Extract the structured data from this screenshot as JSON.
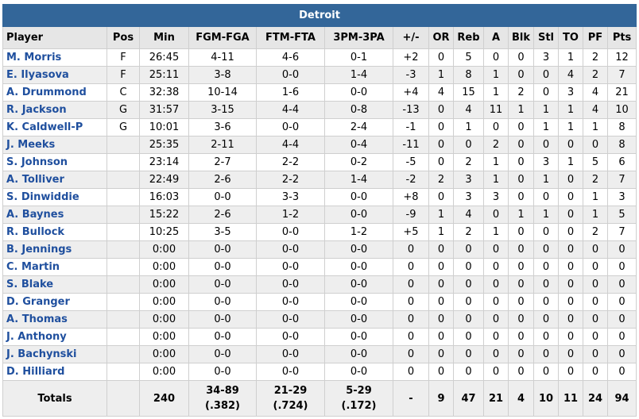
{
  "team": "Detroit",
  "columns": [
    "Player",
    "Pos",
    "Min",
    "FGM-FGA",
    "FTM-FTA",
    "3PM-3PA",
    "+/-",
    "OR",
    "Reb",
    "A",
    "Blk",
    "Stl",
    "TO",
    "PF",
    "Pts"
  ],
  "players": [
    [
      "M. Morris",
      "F",
      "26:45",
      "4-11",
      "4-6",
      "0-1",
      "+2",
      "0",
      "5",
      "0",
      "0",
      "3",
      "1",
      "2",
      "12"
    ],
    [
      "E. Ilyasova",
      "F",
      "25:11",
      "3-8",
      "0-0",
      "1-4",
      "-3",
      "1",
      "8",
      "1",
      "0",
      "0",
      "4",
      "2",
      "7"
    ],
    [
      "A. Drummond",
      "C",
      "32:38",
      "10-14",
      "1-6",
      "0-0",
      "+4",
      "4",
      "15",
      "1",
      "2",
      "0",
      "3",
      "4",
      "21"
    ],
    [
      "R. Jackson",
      "G",
      "31:57",
      "3-15",
      "4-4",
      "0-8",
      "-13",
      "0",
      "4",
      "11",
      "1",
      "1",
      "1",
      "4",
      "10"
    ],
    [
      "K. Caldwell-P",
      "G",
      "10:01",
      "3-6",
      "0-0",
      "2-4",
      "-1",
      "0",
      "1",
      "0",
      "0",
      "1",
      "1",
      "1",
      "8"
    ],
    [
      "J. Meeks",
      "",
      "25:35",
      "2-11",
      "4-4",
      "0-4",
      "-11",
      "0",
      "0",
      "2",
      "0",
      "0",
      "0",
      "0",
      "8"
    ],
    [
      "S. Johnson",
      "",
      "23:14",
      "2-7",
      "2-2",
      "0-2",
      "-5",
      "0",
      "2",
      "1",
      "0",
      "3",
      "1",
      "5",
      "6"
    ],
    [
      "A. Tolliver",
      "",
      "22:49",
      "2-6",
      "2-2",
      "1-4",
      "-2",
      "2",
      "3",
      "1",
      "0",
      "1",
      "0",
      "2",
      "7"
    ],
    [
      "S. Dinwiddie",
      "",
      "16:03",
      "0-0",
      "3-3",
      "0-0",
      "+8",
      "0",
      "3",
      "3",
      "0",
      "0",
      "0",
      "1",
      "3"
    ],
    [
      "A. Baynes",
      "",
      "15:22",
      "2-6",
      "1-2",
      "0-0",
      "-9",
      "1",
      "4",
      "0",
      "1",
      "1",
      "0",
      "1",
      "5"
    ],
    [
      "R. Bullock",
      "",
      "10:25",
      "3-5",
      "0-0",
      "1-2",
      "+5",
      "1",
      "2",
      "1",
      "0",
      "0",
      "0",
      "2",
      "7"
    ],
    [
      "B. Jennings",
      "",
      "0:00",
      "0-0",
      "0-0",
      "0-0",
      "0",
      "0",
      "0",
      "0",
      "0",
      "0",
      "0",
      "0",
      "0"
    ],
    [
      "C. Martin",
      "",
      "0:00",
      "0-0",
      "0-0",
      "0-0",
      "0",
      "0",
      "0",
      "0",
      "0",
      "0",
      "0",
      "0",
      "0"
    ],
    [
      "S. Blake",
      "",
      "0:00",
      "0-0",
      "0-0",
      "0-0",
      "0",
      "0",
      "0",
      "0",
      "0",
      "0",
      "0",
      "0",
      "0"
    ],
    [
      "D. Granger",
      "",
      "0:00",
      "0-0",
      "0-0",
      "0-0",
      "0",
      "0",
      "0",
      "0",
      "0",
      "0",
      "0",
      "0",
      "0"
    ],
    [
      "A. Thomas",
      "",
      "0:00",
      "0-0",
      "0-0",
      "0-0",
      "0",
      "0",
      "0",
      "0",
      "0",
      "0",
      "0",
      "0",
      "0"
    ],
    [
      "J. Anthony",
      "",
      "0:00",
      "0-0",
      "0-0",
      "0-0",
      "0",
      "0",
      "0",
      "0",
      "0",
      "0",
      "0",
      "0",
      "0"
    ],
    [
      "J. Bachynski",
      "",
      "0:00",
      "0-0",
      "0-0",
      "0-0",
      "0",
      "0",
      "0",
      "0",
      "0",
      "0",
      "0",
      "0",
      "0"
    ],
    [
      "D. Hilliard",
      "",
      "0:00",
      "0-0",
      "0-0",
      "0-0",
      "0",
      "0",
      "0",
      "0",
      "0",
      "0",
      "0",
      "0",
      "0"
    ]
  ],
  "totals": {
    "label": "Totals",
    "pos": "",
    "min": "240",
    "fg": "34-89",
    "fg_pct": "(.382)",
    "ft": "21-29",
    "ft_pct": "(.724)",
    "tp": "5-29",
    "tp_pct": "(.172)",
    "plusminus": "-",
    "or": "9",
    "reb": "47",
    "a": "21",
    "blk": "4",
    "stl": "10",
    "to": "11",
    "pf": "24",
    "pts": "94"
  },
  "colors": {
    "header_bg": "#336699",
    "player_link": "#1f4f9e",
    "alt_row": "#eeeeee",
    "col_header_bg": "#e6e6e6"
  }
}
